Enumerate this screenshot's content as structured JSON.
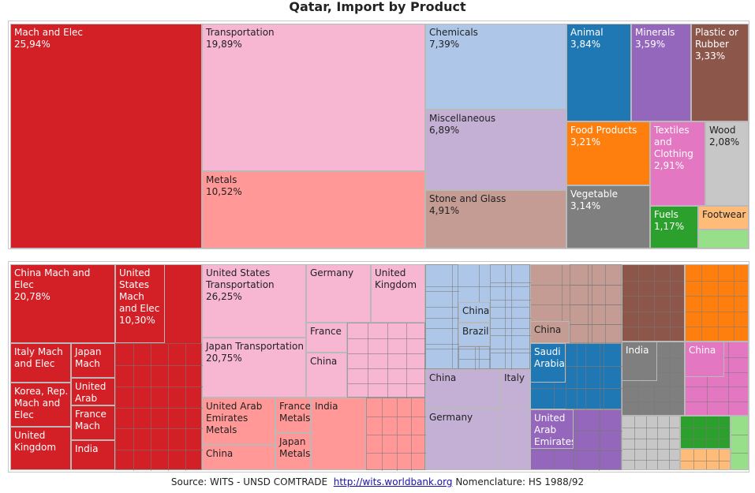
{
  "title": "Qatar, Import by Product",
  "source": {
    "prefix": "Source: WITS - UNSD COMTRADE",
    "link": "http://wits.worldbank.org",
    "suffix": "Nomenclature: HS 1988/92"
  },
  "chart_data": [
    {
      "type": "treemap",
      "title": "Qatar, Import by Product",
      "unit": "%",
      "items": [
        {
          "name": "Mach and Elec",
          "value": 25.94,
          "label": "25,94%",
          "color": "#d32027"
        },
        {
          "name": "Transportation",
          "value": 19.89,
          "label": "19,89%",
          "color": "#f7b6d2"
        },
        {
          "name": "Metals",
          "value": 10.52,
          "label": "10,52%",
          "color": "#ff9896"
        },
        {
          "name": "Chemicals",
          "value": 7.39,
          "label": "7,39%",
          "color": "#aec7e8"
        },
        {
          "name": "Miscellaneous",
          "value": 6.89,
          "label": "6,89%",
          "color": "#c5b0d5"
        },
        {
          "name": "Stone and Glass",
          "value": 4.91,
          "label": "4,91%",
          "color": "#c49c94"
        },
        {
          "name": "Animal",
          "value": 3.84,
          "label": "3,84%",
          "color": "#1f77b4"
        },
        {
          "name": "Minerals",
          "value": 3.59,
          "label": "3,59%",
          "color": "#9467bd"
        },
        {
          "name": "Plastic or Rubber",
          "value": 3.33,
          "label": "3,33%",
          "color": "#8c564b"
        },
        {
          "name": "Food Products",
          "value": 3.21,
          "label": "3,21%",
          "color": "#ff7f0e"
        },
        {
          "name": "Textiles and Clothing",
          "value": 2.91,
          "label": "2,91%",
          "color": "#e377c2"
        },
        {
          "name": "Wood",
          "value": 2.08,
          "label": "2,08%",
          "color": "#c7c7c7"
        },
        {
          "name": "Vegetable",
          "value": 3.14,
          "label": "3,14%",
          "color": "#7f7f7f"
        },
        {
          "name": "Fuels",
          "value": 1.17,
          "label": "1,17%",
          "color": "#2ca02c"
        },
        {
          "name": "Footwear",
          "value": null,
          "label": "",
          "color": "#ffbb78"
        },
        {
          "name": "",
          "value": null,
          "label": "",
          "color": "#98df8a"
        }
      ]
    },
    {
      "type": "treemap",
      "title": "",
      "unit": "%",
      "items": [
        {
          "name": "China Mach and Elec",
          "value": 20.78,
          "label": "20,78%",
          "group": "Mach and Elec",
          "color": "#d32027"
        },
        {
          "name": "United States Mach and Elec",
          "value": 10.3,
          "label": "10,30%",
          "group": "Mach and Elec",
          "color": "#d32027"
        },
        {
          "name": "Italy Mach and Elec",
          "value": null,
          "label": "",
          "group": "Mach and Elec",
          "color": "#d32027"
        },
        {
          "name": "Japan Mach",
          "value": null,
          "label": "",
          "group": "Mach and Elec",
          "color": "#d32027"
        },
        {
          "name": "Korea, Rep. Mach and Elec",
          "value": null,
          "label": "",
          "group": "Mach and Elec",
          "color": "#d32027"
        },
        {
          "name": "United Arab",
          "value": null,
          "label": "",
          "group": "Mach and Elec",
          "color": "#d32027"
        },
        {
          "name": "France Mach",
          "value": null,
          "label": "",
          "group": "Mach and Elec",
          "color": "#d32027"
        },
        {
          "name": "United Kingdom",
          "value": null,
          "label": "",
          "group": "Mach and Elec",
          "color": "#d32027"
        },
        {
          "name": "India",
          "value": null,
          "label": "",
          "group": "Mach and Elec",
          "color": "#d32027"
        },
        {
          "name": "United States Transportation",
          "value": 26.25,
          "label": "26,25%",
          "group": "Transportation",
          "color": "#f7b6d2"
        },
        {
          "name": "Japan Transportation",
          "value": 20.75,
          "label": "20,75%",
          "group": "Transportation",
          "color": "#f7b6d2"
        },
        {
          "name": "Germany",
          "value": null,
          "label": "",
          "group": "Transportation",
          "color": "#f7b6d2"
        },
        {
          "name": "United Kingdom",
          "value": null,
          "label": "",
          "group": "Transportation",
          "color": "#f7b6d2"
        },
        {
          "name": "France",
          "value": null,
          "label": "",
          "group": "Transportation",
          "color": "#f7b6d2"
        },
        {
          "name": "China",
          "value": null,
          "label": "",
          "group": "Transportation",
          "color": "#f7b6d2"
        },
        {
          "name": "United Arab Emirates Metals",
          "value": null,
          "label": "",
          "group": "Metals",
          "color": "#ff9896"
        },
        {
          "name": "France Metals",
          "value": null,
          "label": "",
          "group": "Metals",
          "color": "#ff9896"
        },
        {
          "name": "Japan Metals",
          "value": null,
          "label": "",
          "group": "Metals",
          "color": "#ff9896"
        },
        {
          "name": "India",
          "value": null,
          "label": "",
          "group": "Metals",
          "color": "#ff9896"
        },
        {
          "name": "China",
          "value": null,
          "label": "",
          "group": "Metals",
          "color": "#ff9896"
        },
        {
          "name": "China",
          "value": null,
          "label": "",
          "group": "Chemicals",
          "color": "#aec7e8"
        },
        {
          "name": "Brazil",
          "value": null,
          "label": "",
          "group": "Chemicals",
          "color": "#aec7e8"
        },
        {
          "name": "China",
          "value": null,
          "label": "",
          "group": "Miscellaneous",
          "color": "#c5b0d5"
        },
        {
          "name": "Italy",
          "value": null,
          "label": "",
          "group": "Miscellaneous",
          "color": "#c5b0d5"
        },
        {
          "name": "Germany",
          "value": null,
          "label": "",
          "group": "Miscellaneous",
          "color": "#c5b0d5"
        },
        {
          "name": "China",
          "value": null,
          "label": "",
          "group": "Stone and Glass",
          "color": "#c49c94"
        },
        {
          "name": "Saudi Arabia",
          "value": null,
          "label": "",
          "group": "Animal",
          "color": "#1f77b4"
        },
        {
          "name": "United Arab Emirates",
          "value": null,
          "label": "",
          "group": "Minerals",
          "color": "#9467bd"
        },
        {
          "name": "India",
          "value": null,
          "label": "",
          "group": "Vegetable",
          "color": "#7f7f7f"
        },
        {
          "name": "China",
          "value": null,
          "label": "",
          "group": "Textiles and Clothing",
          "color": "#e377c2"
        }
      ]
    }
  ]
}
